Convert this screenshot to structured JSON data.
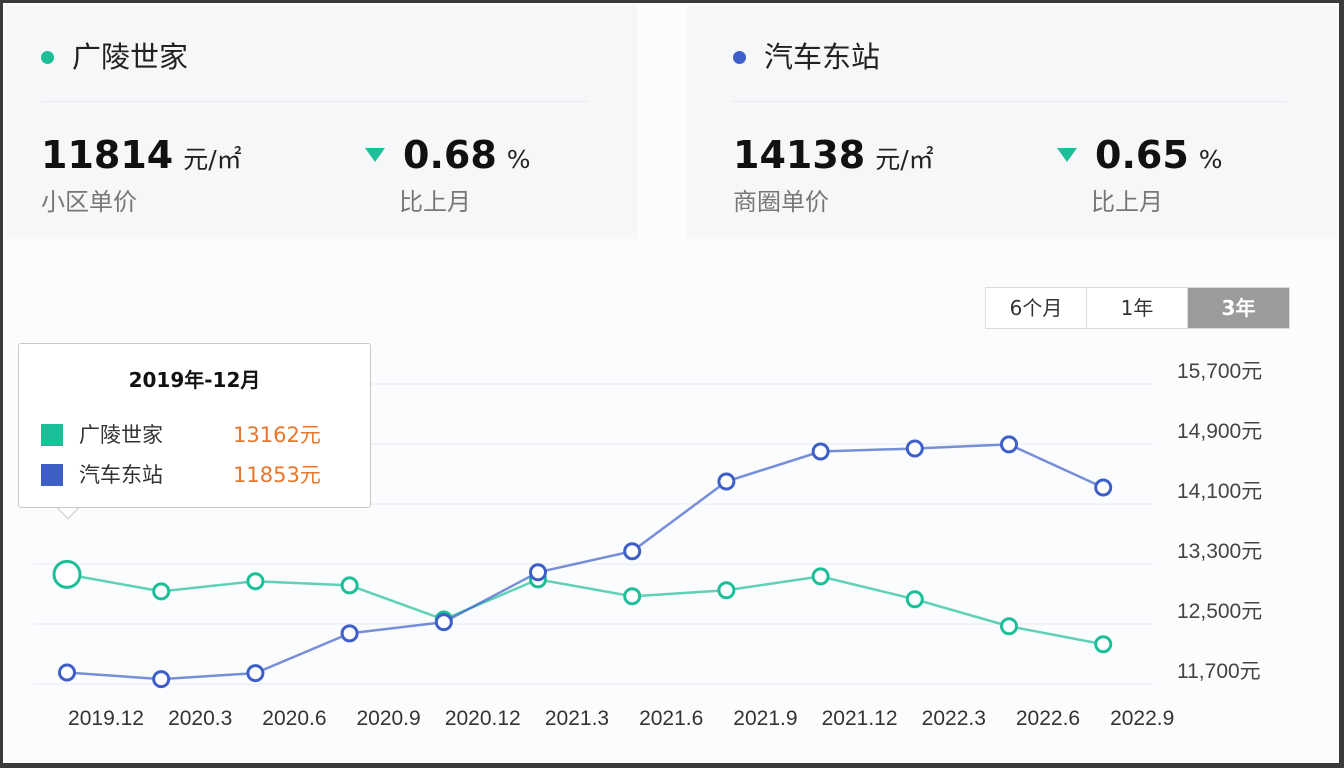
{
  "cards": [
    {
      "name": "广陵世家",
      "color": "#1dbf98",
      "price": "11814",
      "unit": "元/㎡",
      "price_label": "小区单价",
      "change": "0.68",
      "change_unit": "%",
      "change_label": "比上月",
      "direction": "down"
    },
    {
      "name": "汽车东站",
      "color": "#3e5fc8",
      "price": "14138",
      "unit": "元/㎡",
      "price_label": "商圈单价",
      "change": "0.65",
      "change_unit": "%",
      "change_label": "比上月",
      "direction": "down"
    }
  ],
  "range_buttons": [
    {
      "label": "6个月"
    },
    {
      "label": "1年"
    },
    {
      "label": "3年",
      "active": true
    }
  ],
  "tooltip": {
    "title": "2019年-12月",
    "rows": [
      {
        "name": "广陵世家",
        "value": "13162元",
        "color": "#1dbf98"
      },
      {
        "name": "汽车东站",
        "value": "11853元",
        "color": "#3e5fc8"
      }
    ]
  },
  "chart_data": {
    "type": "line",
    "x_ticks": [
      "2019.12",
      "2020.3",
      "2020.6",
      "2020.9",
      "2020.12",
      "2021.3",
      "2021.6",
      "2021.9",
      "2021.12",
      "2022.3",
      "2022.6",
      "2022.9"
    ],
    "y_ticks": [
      "15,700元",
      "14,900元",
      "14,100元",
      "13,300元",
      "12,500元",
      "11,700元"
    ],
    "ylim": [
      11700,
      15700
    ],
    "grid": true,
    "series": [
      {
        "name": "广陵世家",
        "color": "#1dbf98",
        "values": [
          13162,
          12935,
          13070,
          13015,
          12560,
          13095,
          12870,
          12950,
          13135,
          12830,
          12470,
          12230
        ]
      },
      {
        "name": "汽车东站",
        "color": "#3e5fc8",
        "values": [
          11853,
          11765,
          11845,
          12375,
          12525,
          13190,
          13470,
          14400,
          14800,
          14840,
          14895,
          14320
        ]
      }
    ]
  }
}
